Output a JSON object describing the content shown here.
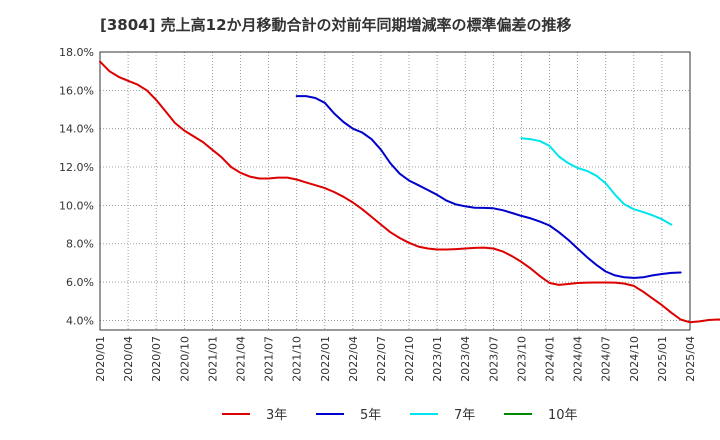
{
  "chart_data": {
    "type": "line",
    "title": "[3804]  売上高12か月移動合計の対前年同期増減率の標準偏差の推移",
    "xlabel": "",
    "ylabel": "",
    "ylim": [
      3.5,
      18.0
    ],
    "y_ticks": [
      4,
      6,
      8,
      10,
      12,
      14,
      16,
      18
    ],
    "y_tick_labels": [
      "4.0%",
      "6.0%",
      "8.0%",
      "10.0%",
      "12.0%",
      "14.0%",
      "16.0%",
      "18.0%"
    ],
    "x_start": "2020/01",
    "x_end": "2025/04",
    "x_tick_labels": [
      "2020/01",
      "2020/04",
      "2020/07",
      "2020/10",
      "2021/01",
      "2021/04",
      "2021/07",
      "2021/10",
      "2022/01",
      "2022/04",
      "2022/07",
      "2022/10",
      "2023/01",
      "2023/04",
      "2023/07",
      "2023/10",
      "2024/01",
      "2024/04",
      "2024/07",
      "2024/10",
      "2025/01",
      "2025/04"
    ],
    "grid": true,
    "legend_position": "bottom",
    "series": [
      {
        "name": "3年",
        "color": "#dd0000",
        "start": "2020/01",
        "values": [
          17.5,
          17.0,
          16.7,
          16.5,
          16.3,
          16.0,
          15.5,
          14.9,
          14.3,
          13.9,
          13.6,
          13.3,
          12.9,
          12.5,
          12.0,
          11.7,
          11.5,
          11.4,
          11.4,
          11.45,
          11.45,
          11.35,
          11.2,
          11.05,
          10.9,
          10.7,
          10.45,
          10.15,
          9.8,
          9.4,
          9.0,
          8.6,
          8.3,
          8.05,
          7.85,
          7.75,
          7.7,
          7.7,
          7.72,
          7.75,
          7.78,
          7.8,
          7.75,
          7.6,
          7.35,
          7.05,
          6.7,
          6.3,
          5.95,
          5.85,
          5.9,
          5.95,
          5.97,
          5.98,
          5.98,
          5.97,
          5.92,
          5.8,
          5.5,
          5.15,
          4.8,
          4.4,
          4.05,
          3.9,
          3.95,
          4.02,
          4.05,
          4.0,
          3.92
        ]
      },
      {
        "name": "5年",
        "color": "#0000cc",
        "start": "2021/10",
        "values": [
          15.7,
          15.7,
          15.6,
          15.35,
          14.8,
          14.35,
          14.0,
          13.8,
          13.45,
          12.9,
          12.2,
          11.65,
          11.3,
          11.05,
          10.8,
          10.55,
          10.25,
          10.05,
          9.95,
          9.88,
          9.87,
          9.85,
          9.75,
          9.6,
          9.45,
          9.32,
          9.15,
          8.95,
          8.6,
          8.2,
          7.75,
          7.3,
          6.9,
          6.55,
          6.35,
          6.25,
          6.22,
          6.25,
          6.35,
          6.42,
          6.48,
          6.5
        ]
      },
      {
        "name": "7年",
        "color": "#00e5ee",
        "start": "2023/10",
        "values": [
          13.5,
          13.45,
          13.35,
          13.1,
          12.55,
          12.2,
          11.95,
          11.8,
          11.55,
          11.15,
          10.55,
          10.05,
          9.8,
          9.65,
          9.48,
          9.28,
          9.0
        ]
      },
      {
        "name": "10年",
        "color": "#008800",
        "start": "2025/01",
        "values": []
      }
    ]
  }
}
